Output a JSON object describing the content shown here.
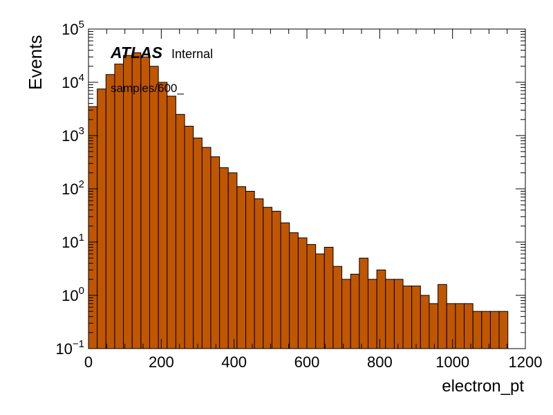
{
  "chart_data": {
    "type": "bar",
    "style": "histogram",
    "xlabel": "electron_pt",
    "ylabel": "Events",
    "yscale": "log",
    "xlim": [
      0,
      1200
    ],
    "ylim": [
      0.1,
      100000
    ],
    "x_ticks": [
      "0",
      "200",
      "400",
      "600",
      "800",
      "1000",
      "1200"
    ],
    "y_ticks": [
      {
        "base": "10",
        "exp": "−1"
      },
      {
        "base": "10",
        "exp": "0"
      },
      {
        "base": "10",
        "exp": "1"
      },
      {
        "base": "10",
        "exp": "2"
      },
      {
        "base": "10",
        "exp": "3"
      },
      {
        "base": "10",
        "exp": "4"
      },
      {
        "base": "10",
        "exp": "5"
      }
    ],
    "bin_width": 24,
    "bin_edges_start": 0,
    "values": [
      3500,
      7500,
      14000,
      22000,
      32000,
      36000,
      30000,
      20000,
      10000,
      5500,
      2500,
      1500,
      900,
      600,
      400,
      250,
      200,
      110,
      90,
      65,
      45,
      38,
      23,
      15,
      12,
      9,
      6,
      8,
      3.5,
      2,
      2.5,
      5,
      2,
      3,
      2,
      2,
      1.5,
      1.5,
      1,
      0.7,
      1.6,
      0.7,
      0.7,
      0.7,
      0.5,
      0.5,
      0.5,
      0.5
    ],
    "bar_color": "#c05600",
    "annotations": {
      "experiment": "ATLAS",
      "status": "Internal",
      "sample": "samples/600_"
    },
    "grid": false,
    "legend": "none"
  }
}
